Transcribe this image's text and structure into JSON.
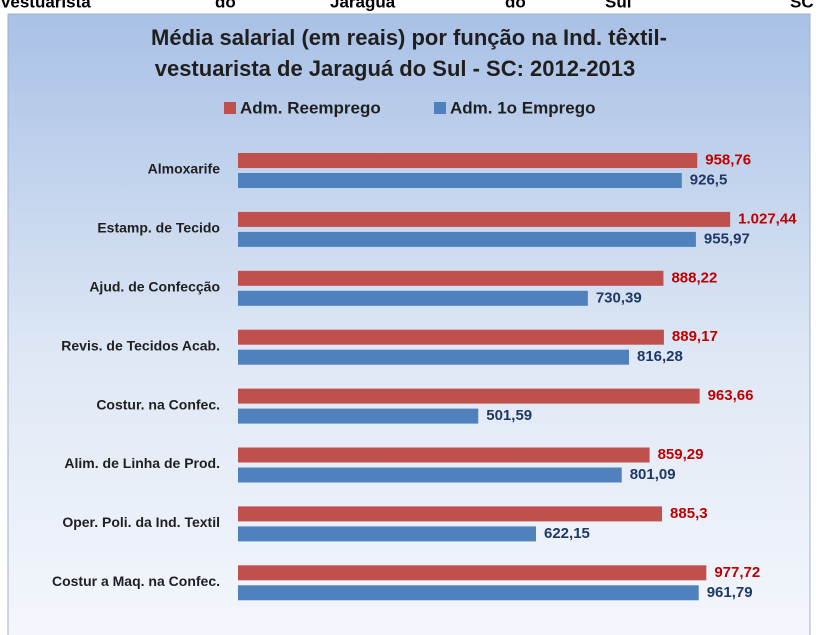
{
  "page_fragment": [
    "Vestuarista",
    "do",
    "Jaraguá",
    "do",
    "Sul",
    "SC"
  ],
  "chart_data": {
    "type": "barh",
    "title": [
      "Média salarial (em reais) por função na Ind. têxtil-",
      "vestuarista de Jaraguá do Sul - SC: 2012-2013"
    ],
    "categories": [
      "Almoxarife",
      "Estamp. de Tecido",
      "Ajud. de Confecção",
      "Revis. de Tecidos Acab.",
      "Costur. na Confec.",
      "Alim. de Linha de Prod.",
      "Oper. Poli. da Ind. Textil",
      "Costur a Maq. na Confec."
    ],
    "series": [
      {
        "name": "Adm. Reemprego",
        "color": "#c0504d",
        "label_color": "#c00000",
        "values": [
          958.76,
          1027.44,
          888.22,
          889.17,
          963.66,
          859.29,
          885.3,
          977.72
        ],
        "value_labels": [
          "958,76",
          "1.027,44",
          "888,22",
          "889,17",
          "963,66",
          "859,29",
          "885,3",
          "977,72"
        ]
      },
      {
        "name": "Adm. 1o Emprego",
        "color": "#4f81bd",
        "label_color": "#1f3864",
        "values": [
          926.5,
          955.97,
          730.39,
          816.28,
          501.59,
          801.09,
          622.15,
          961.79
        ],
        "value_labels": [
          "926,5",
          "955,97",
          "730,39",
          "816,28",
          "501,59",
          "801,09",
          "622,15",
          "961,79"
        ]
      }
    ],
    "legend": "top"
  }
}
